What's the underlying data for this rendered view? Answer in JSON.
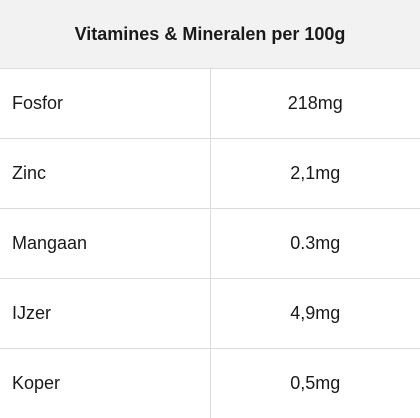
{
  "table": {
    "title": "Vitamines & Mineralen per 100g",
    "rows": [
      [
        "Fosfor",
        "218mg"
      ],
      [
        "Zinc",
        "2,1mg"
      ],
      [
        "Mangaan",
        "0.3mg"
      ],
      [
        "IJzer",
        "4,9mg"
      ],
      [
        "Koper",
        "0,5mg"
      ]
    ]
  }
}
